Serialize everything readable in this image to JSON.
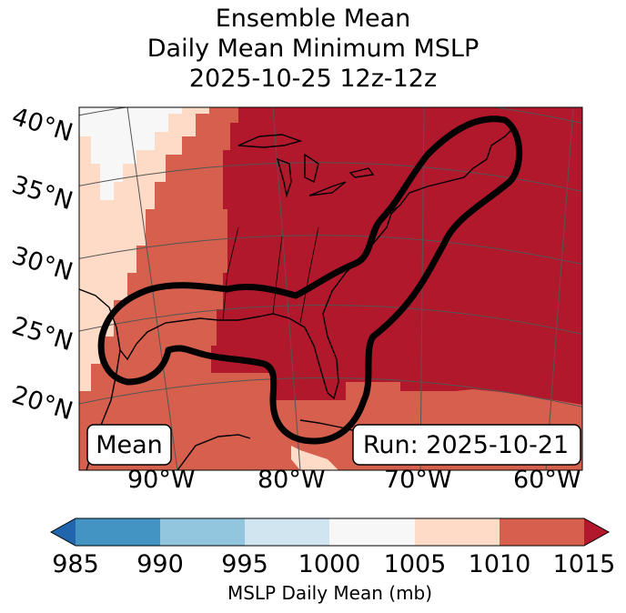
{
  "title": {
    "line1": "Ensemble Mean",
    "line2": "Daily Mean Minimum MSLP",
    "line3": "2025-10-25 12z-12z"
  },
  "map": {
    "lat_labels": [
      "40°N",
      "35°N",
      "30°N",
      "25°N",
      "20°N"
    ],
    "lon_labels": [
      "90°W",
      "80°W",
      "70°W",
      "60°W"
    ],
    "mean_box_label": "Mean",
    "run_box_label": "Run: 2025-10-21",
    "region": "Eastern North America and Gulf of Mexico",
    "contour_color": "#000000"
  },
  "colorbar": {
    "ticks": [
      "985",
      "990",
      "995",
      "1000",
      "1005",
      "1010",
      "1015"
    ],
    "label": "MSLP Daily Mean (mb)",
    "colors": [
      "#2166ac",
      "#4393c3",
      "#92c5de",
      "#d1e5f0",
      "#f7f7f7",
      "#fddbc7",
      "#d6604d",
      "#b2182b"
    ],
    "units": "mb",
    "extend": "both"
  }
}
